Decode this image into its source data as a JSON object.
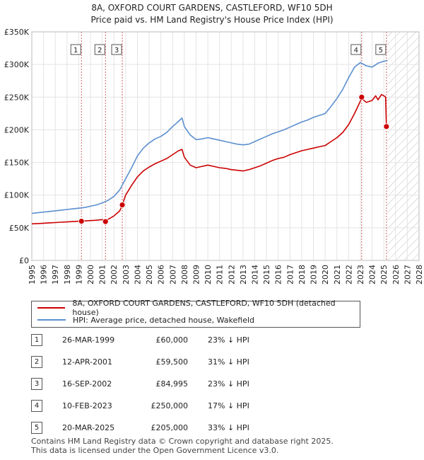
{
  "chart_data": {
    "type": "line",
    "title": "8A, OXFORD COURT GARDENS, CASTLEFORD, WF10 5DH",
    "subtitle": "Price paid vs. HM Land Registry's House Price Index (HPI)",
    "xlabel": "",
    "ylabel": "",
    "xlim": [
      1995,
      2028
    ],
    "ylim": [
      0,
      350000
    ],
    "x_ticks": [
      1995,
      1996,
      1997,
      1998,
      1999,
      2000,
      2001,
      2002,
      2003,
      2004,
      2005,
      2006,
      2007,
      2008,
      2009,
      2010,
      2011,
      2012,
      2013,
      2014,
      2015,
      2016,
      2017,
      2018,
      2019,
      2020,
      2021,
      2022,
      2023,
      2024,
      2025,
      2026,
      2027,
      2028
    ],
    "y_ticks": [
      {
        "value": 0,
        "label": "£0"
      },
      {
        "value": 50000,
        "label": "£50K"
      },
      {
        "value": 100000,
        "label": "£100K"
      },
      {
        "value": 150000,
        "label": "£150K"
      },
      {
        "value": 200000,
        "label": "£200K"
      },
      {
        "value": 250000,
        "label": "£250K"
      },
      {
        "value": 300000,
        "label": "£300K"
      },
      {
        "value": 350000,
        "label": "£350K"
      }
    ],
    "grid": true,
    "future_region_start": 2025.3,
    "series": [
      {
        "name": "8A, OXFORD COURT GARDENS, CASTLEFORD, WF10 5DH (detached house)",
        "color": "#cc0000",
        "x": [
          1995.0,
          1995.5,
          1996.0,
          1996.5,
          1997.0,
          1997.5,
          1998.0,
          1998.5,
          1999.0,
          1999.23,
          1999.5,
          2000.0,
          2000.5,
          2001.0,
          2001.28,
          2001.5,
          2002.0,
          2002.5,
          2002.71,
          2003.0,
          2003.5,
          2004.0,
          2004.5,
          2005.0,
          2005.5,
          2006.0,
          2006.5,
          2007.0,
          2007.5,
          2007.8,
          2008.0,
          2008.5,
          2009.0,
          2009.5,
          2010.0,
          2010.5,
          2011.0,
          2011.5,
          2012.0,
          2012.5,
          2013.0,
          2013.5,
          2014.0,
          2014.5,
          2015.0,
          2015.5,
          2016.0,
          2016.5,
          2017.0,
          2017.5,
          2018.0,
          2018.5,
          2019.0,
          2019.5,
          2020.0,
          2020.5,
          2021.0,
          2021.5,
          2022.0,
          2022.5,
          2023.0,
          2023.11,
          2023.3,
          2023.5,
          2024.0,
          2024.3,
          2024.5,
          2024.8,
          2025.0,
          2025.15,
          2025.22
        ],
        "values": [
          56000,
          56500,
          57000,
          57500,
          58000,
          58500,
          59000,
          59500,
          60000,
          60000,
          60500,
          61000,
          61500,
          62500,
          59500,
          63000,
          68000,
          76000,
          84995,
          100000,
          115000,
          128000,
          137000,
          143000,
          148000,
          152000,
          156000,
          162000,
          168000,
          170000,
          158000,
          146000,
          142000,
          144000,
          146000,
          144000,
          142000,
          141000,
          139000,
          138000,
          137000,
          139000,
          142000,
          145000,
          149000,
          153000,
          156000,
          158000,
          162000,
          165000,
          168000,
          170000,
          172000,
          174000,
          176000,
          182000,
          188000,
          196000,
          208000,
          225000,
          244000,
          250000,
          245000,
          242000,
          245000,
          252000,
          246000,
          254000,
          252000,
          250000,
          205000
        ]
      },
      {
        "name": "HPI: Average price, detached house, Wakefield",
        "color": "#5b8fd0",
        "x": [
          1995.0,
          1995.5,
          1996.0,
          1996.5,
          1997.0,
          1997.5,
          1998.0,
          1998.5,
          1999.0,
          1999.5,
          2000.0,
          2000.5,
          2001.0,
          2001.5,
          2002.0,
          2002.5,
          2003.0,
          2003.5,
          2004.0,
          2004.5,
          2005.0,
          2005.5,
          2006.0,
          2006.5,
          2007.0,
          2007.5,
          2007.8,
          2008.0,
          2008.5,
          2009.0,
          2009.5,
          2010.0,
          2010.5,
          2011.0,
          2011.5,
          2012.0,
          2012.5,
          2013.0,
          2013.5,
          2014.0,
          2014.5,
          2015.0,
          2015.5,
          2016.0,
          2016.5,
          2017.0,
          2017.5,
          2018.0,
          2018.5,
          2019.0,
          2019.5,
          2020.0,
          2020.5,
          2021.0,
          2021.5,
          2022.0,
          2022.5,
          2023.0,
          2023.5,
          2024.0,
          2024.5,
          2025.0,
          2025.3
        ],
        "values": [
          72000,
          73000,
          74000,
          75000,
          76000,
          77000,
          78000,
          79000,
          80000,
          81000,
          83000,
          85000,
          88000,
          92000,
          98000,
          108000,
          125000,
          142000,
          160000,
          172000,
          180000,
          186000,
          190000,
          196000,
          205000,
          213000,
          218000,
          205000,
          192000,
          185000,
          186000,
          188000,
          186000,
          184000,
          182000,
          180000,
          178000,
          177000,
          178000,
          182000,
          186000,
          190000,
          194000,
          197000,
          200000,
          204000,
          208000,
          212000,
          215000,
          219000,
          222000,
          225000,
          236000,
          248000,
          262000,
          280000,
          296000,
          303000,
          298000,
          296000,
          302000,
          305000,
          306000
        ]
      }
    ],
    "sales": [
      {
        "id": "1",
        "x": 1999.23,
        "value": 60000
      },
      {
        "id": "2",
        "x": 2001.28,
        "value": 59500
      },
      {
        "id": "3",
        "x": 2002.71,
        "value": 84995
      },
      {
        "id": "4",
        "x": 2023.11,
        "value": 250000
      },
      {
        "id": "5",
        "x": 2025.22,
        "value": 205000
      }
    ]
  },
  "legend": {
    "property_label": "8A, OXFORD COURT GARDENS, CASTLEFORD, WF10 5DH (detached house)",
    "hpi_label": "HPI: Average price, detached house, Wakefield",
    "property_color": "#cc0000",
    "hpi_color": "#5b8fd0"
  },
  "transactions": [
    {
      "id": "1",
      "date": "26-MAR-1999",
      "price": "£60,000",
      "hpi": "23% ↓ HPI"
    },
    {
      "id": "2",
      "date": "12-APR-2001",
      "price": "£59,500",
      "hpi": "31% ↓ HPI"
    },
    {
      "id": "3",
      "date": "16-SEP-2002",
      "price": "£84,995",
      "hpi": "23% ↓ HPI"
    },
    {
      "id": "4",
      "date": "10-FEB-2023",
      "price": "£250,000",
      "hpi": "17% ↓ HPI"
    },
    {
      "id": "5",
      "date": "20-MAR-2025",
      "price": "£205,000",
      "hpi": "33% ↓ HPI"
    }
  ],
  "footer": {
    "line1": "Contains HM Land Registry data © Crown copyright and database right 2025.",
    "line2": "This data is licensed under the Open Government Licence v3.0."
  }
}
